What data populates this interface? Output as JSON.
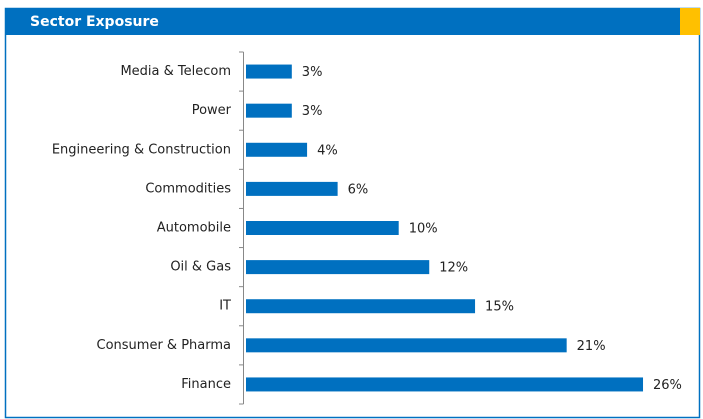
{
  "chart_data": {
    "type": "bar",
    "orientation": "horizontal",
    "title": "Sector Exposure",
    "categories": [
      "Media & Telecom",
      "Power",
      "Engineering & Construction",
      "Commodities",
      "Automobile",
      "Oil & Gas",
      "IT",
      "Consumer & Pharma",
      "Finance"
    ],
    "values": [
      3,
      3,
      4,
      6,
      10,
      12,
      15,
      21,
      26
    ],
    "value_labels": [
      "3%",
      "3%",
      "4%",
      "6%",
      "10%",
      "12%",
      "15%",
      "21%",
      "26%"
    ],
    "color": "#0070c0"
  }
}
